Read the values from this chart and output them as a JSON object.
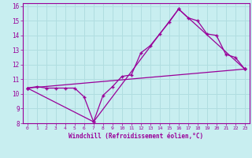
{
  "xlabel": "Windchill (Refroidissement éolien,°C)",
  "background_color": "#c8eef0",
  "line_color": "#990099",
  "xlim": [
    -0.5,
    23.5
  ],
  "ylim": [
    8,
    16.2
  ],
  "yticks": [
    8,
    9,
    10,
    11,
    12,
    13,
    14,
    15,
    16
  ],
  "xticks": [
    0,
    1,
    2,
    3,
    4,
    5,
    6,
    7,
    8,
    9,
    10,
    11,
    12,
    13,
    14,
    15,
    16,
    17,
    18,
    19,
    20,
    21,
    22,
    23
  ],
  "line1_x": [
    0,
    1,
    2,
    3,
    4,
    5,
    6,
    7,
    8,
    9,
    10,
    11,
    12,
    13,
    14,
    15,
    16,
    17,
    18,
    19,
    20,
    21,
    22,
    23
  ],
  "line1_y": [
    10.4,
    10.5,
    10.4,
    10.4,
    10.4,
    10.4,
    9.8,
    8.1,
    9.9,
    10.5,
    11.2,
    11.3,
    12.8,
    13.3,
    14.1,
    14.9,
    15.8,
    15.2,
    15.0,
    14.1,
    14.0,
    12.7,
    12.5,
    11.7
  ],
  "line2_x": [
    0,
    7,
    16,
    23
  ],
  "line2_y": [
    10.4,
    8.1,
    15.8,
    11.7
  ],
  "line3_x": [
    0,
    23
  ],
  "line3_y": [
    10.4,
    11.7
  ],
  "grid_color": "#b0dde0"
}
